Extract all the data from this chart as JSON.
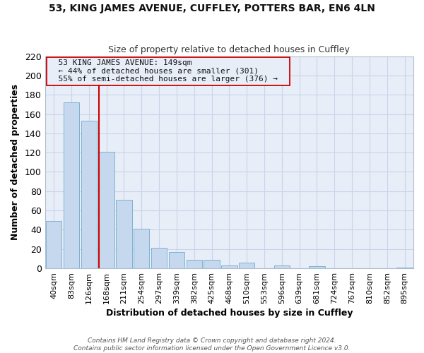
{
  "title": "53, KING JAMES AVENUE, CUFFLEY, POTTERS BAR, EN6 4LN",
  "subtitle": "Size of property relative to detached houses in Cuffley",
  "xlabel": "Distribution of detached houses by size in Cuffley",
  "ylabel": "Number of detached properties",
  "bar_labels": [
    "40sqm",
    "83sqm",
    "126sqm",
    "168sqm",
    "211sqm",
    "254sqm",
    "297sqm",
    "339sqm",
    "382sqm",
    "425sqm",
    "468sqm",
    "510sqm",
    "553sqm",
    "596sqm",
    "639sqm",
    "681sqm",
    "724sqm",
    "767sqm",
    "810sqm",
    "852sqm",
    "895sqm"
  ],
  "bar_values": [
    49,
    172,
    153,
    121,
    71,
    41,
    21,
    17,
    9,
    9,
    3,
    6,
    0,
    3,
    0,
    2,
    0,
    0,
    0,
    0,
    1
  ],
  "bar_color": "#c5d8ed",
  "bar_edgecolor": "#7fb3d3",
  "vline_x": 2.57,
  "vline_color": "#cc0000",
  "annotation_title": "53 KING JAMES AVENUE: 149sqm",
  "annotation_line1": "← 44% of detached houses are smaller (301)",
  "annotation_line2": "55% of semi-detached houses are larger (376) →",
  "annotation_box_edgecolor": "#cc0000",
  "ylim": [
    0,
    220
  ],
  "yticks": [
    0,
    20,
    40,
    60,
    80,
    100,
    120,
    140,
    160,
    180,
    200,
    220
  ],
  "grid_color": "#c8d4e8",
  "plot_bg_color": "#e8eef8",
  "fig_bg_color": "#ffffff",
  "footer1": "Contains HM Land Registry data © Crown copyright and database right 2024.",
  "footer2": "Contains public sector information licensed under the Open Government Licence v3.0."
}
